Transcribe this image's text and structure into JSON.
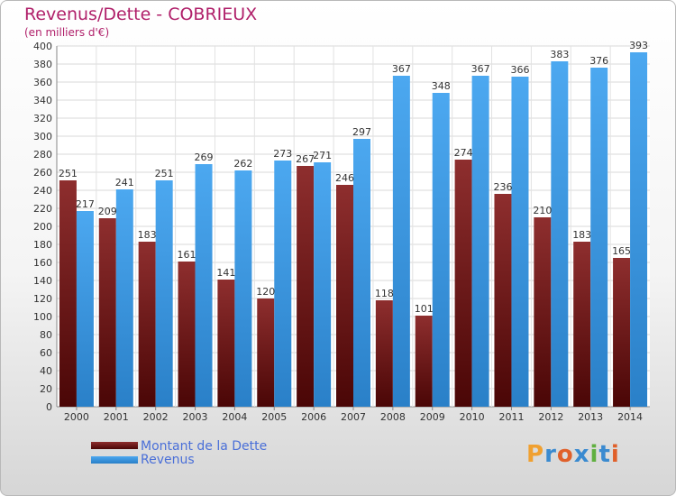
{
  "header": {
    "title": "Revenus/Dette - COBRIEUX",
    "subtitle": "(en milliers d'€)"
  },
  "brand": {
    "name": "Proxiti",
    "letters": [
      "P",
      "r",
      "o",
      "x",
      "i",
      "t",
      "i"
    ],
    "colors": [
      "#f0a030",
      "#3a8ad0",
      "#e0602a",
      "#3a8ad0",
      "#60b040",
      "#3a8ad0",
      "#e0602a"
    ]
  },
  "chart_data": {
    "type": "bar",
    "title": "Revenus/Dette - COBRIEUX",
    "subtitle": "(en milliers d'€)",
    "categories": [
      "2000",
      "2001",
      "2002",
      "2003",
      "2004",
      "2005",
      "2006",
      "2007",
      "2008",
      "2009",
      "2010",
      "2011",
      "2012",
      "2013",
      "2014"
    ],
    "series": [
      {
        "name": "Montant de la Dette",
        "color": "#7a1a1a",
        "values": [
          251,
          209,
          183,
          161,
          141,
          120,
          267,
          246,
          118,
          101,
          274,
          236,
          210,
          183,
          165
        ]
      },
      {
        "name": "Revenus",
        "color": "#3a9ae0",
        "values": [
          217,
          241,
          251,
          269,
          262,
          273,
          271,
          297,
          367,
          348,
          367,
          366,
          383,
          376,
          393
        ]
      }
    ],
    "ylim": [
      0,
      400
    ],
    "ytick_step": 20,
    "grid": true,
    "legend_position": "bottom-left"
  }
}
